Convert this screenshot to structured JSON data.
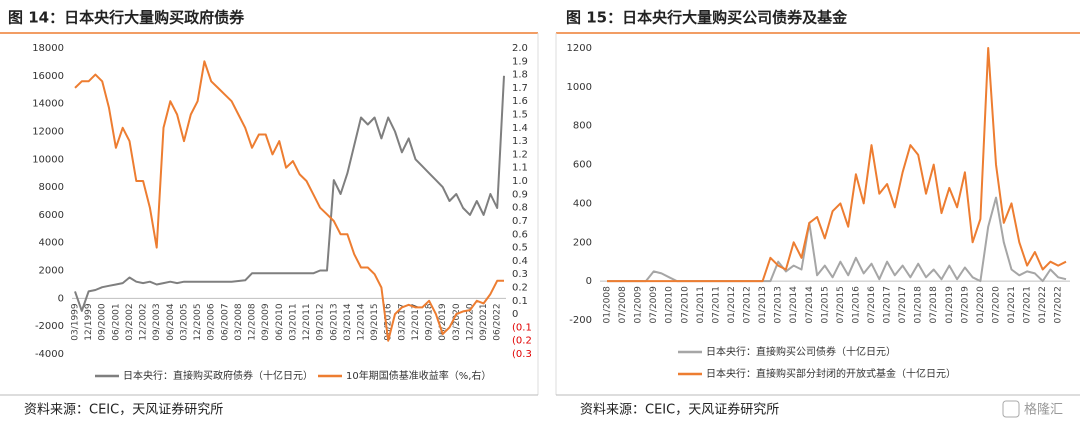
{
  "chart_data": [
    {
      "type": "line",
      "title": "图 14：日本央行大量购买政府债券",
      "source": "资料来源：CEIC，天风证券研究所",
      "categories": [
        "03/1999",
        null,
        "12/1999",
        null,
        "09/2000",
        null,
        "06/2001",
        null,
        "03/2002",
        null,
        "12/2002",
        null,
        "09/2003",
        null,
        "06/2004",
        null,
        "03/2005",
        null,
        "12/2005",
        null,
        "09/2006",
        null,
        "06/2007",
        null,
        "03/2008",
        null,
        "12/2008",
        null,
        "09/2009",
        null,
        "06/2010",
        null,
        "03/2011",
        null,
        "12/2011",
        null,
        "09/2012",
        null,
        "06/2013",
        null,
        "03/2014",
        null,
        "12/2014",
        null,
        "09/2015",
        null,
        "06/2016",
        null,
        "03/2017",
        null,
        "12/2017",
        null,
        "09/2018",
        null,
        "06/2019",
        null,
        "03/2020",
        null,
        "12/2020",
        null,
        "09/2021",
        null,
        "06/2022",
        null
      ],
      "series": [
        {
          "name": "日本央行：直接购买政府债券（十亿日元）",
          "color": "#7f7f7f",
          "axis": "y",
          "values": [
            500,
            -900,
            500,
            600,
            800,
            900,
            1000,
            1100,
            1500,
            1200,
            1100,
            1200,
            1000,
            1100,
            1200,
            1100,
            1200,
            1200,
            1200,
            1200,
            1200,
            1200,
            1200,
            1200,
            1250,
            1300,
            1800,
            1800,
            1800,
            1800,
            1800,
            1800,
            1800,
            1800,
            1800,
            1800,
            2000,
            2000,
            8500,
            7500,
            9000,
            11000,
            13000,
            12500,
            13000,
            11500,
            13000,
            12000,
            10500,
            11500,
            10000,
            9500,
            9000,
            8500,
            8000,
            7000,
            7500,
            6500,
            6000,
            7000,
            6000,
            7500,
            6500,
            16000
          ]
        },
        {
          "name": "10年期国债基准收益率（%,右）",
          "color": "#ed7d31",
          "axis": "y2",
          "values": [
            1.7,
            1.75,
            1.75,
            1.8,
            1.75,
            1.55,
            1.25,
            1.4,
            1.3,
            1.0,
            1.0,
            0.8,
            0.5,
            1.4,
            1.6,
            1.5,
            1.3,
            1.5,
            1.6,
            1.9,
            1.75,
            1.7,
            1.65,
            1.6,
            1.5,
            1.4,
            1.25,
            1.35,
            1.35,
            1.2,
            1.3,
            1.1,
            1.15,
            1.05,
            1.0,
            0.9,
            0.8,
            0.75,
            0.7,
            0.6,
            0.6,
            0.45,
            0.35,
            0.35,
            0.3,
            0.2,
            -0.2,
            0.0,
            0.05,
            0.07,
            0.05,
            0.05,
            0.1,
            0.0,
            -0.15,
            -0.1,
            0.0,
            0.02,
            0.03,
            0.1,
            0.08,
            0.15,
            0.25,
            0.25
          ]
        }
      ],
      "ylim": [
        -4000,
        18000
      ],
      "yticks": [
        18000,
        16000,
        14000,
        12000,
        10000,
        8000,
        6000,
        4000,
        2000,
        0,
        -2000,
        -4000
      ],
      "y2lim": [
        -0.3,
        2.0
      ],
      "y2ticks": [
        {
          "value": 2.0,
          "label": "2.0"
        },
        1.9,
        1.8,
        1.7,
        1.6,
        1.5,
        1.4,
        1.3,
        1.2,
        1.1,
        {
          "value": 1.0,
          "label": "1.0"
        },
        0.9,
        0.8,
        0.7,
        0.6,
        0.5,
        0.4,
        0.3,
        0.2,
        0.1,
        0,
        {
          "value": -0.1,
          "label": "(0.1"
        },
        {
          "value": -0.2,
          "label": "(0.2"
        },
        {
          "value": -0.3,
          "label": "(0.3"
        }
      ]
    },
    {
      "type": "line",
      "title": "图 15：日本央行大量购买公司债券及基金",
      "source": "资料来源：CEIC，天风证券研究所",
      "categories": [
        "01/2008",
        null,
        "07/2008",
        null,
        "01/2009",
        null,
        "07/2009",
        null,
        "01/2010",
        null,
        "07/2010",
        null,
        "01/2011",
        null,
        "07/2011",
        null,
        "01/2012",
        null,
        "07/2012",
        null,
        "01/2013",
        null,
        "07/2013",
        null,
        "01/2014",
        null,
        "07/2014",
        null,
        "01/2015",
        null,
        "07/2015",
        null,
        "01/2016",
        null,
        "07/2016",
        null,
        "01/2017",
        null,
        "07/2017",
        null,
        "01/2018",
        null,
        "07/2018",
        null,
        "01/2019",
        null,
        "07/2019",
        null,
        "01/2020",
        null,
        "07/2020",
        null,
        "01/2021",
        null,
        "07/2021",
        null,
        "01/2022",
        null,
        "07/2022",
        null
      ],
      "series": [
        {
          "name": "日本央行：直接购买公司债券（十亿日元）",
          "color": "#a6a6a6",
          "axis": "y",
          "values": [
            0,
            0,
            0,
            0,
            0,
            0,
            50,
            40,
            20,
            0,
            0,
            0,
            0,
            0,
            0,
            0,
            0,
            0,
            0,
            0,
            0,
            0,
            100,
            50,
            80,
            60,
            300,
            30,
            80,
            20,
            100,
            30,
            120,
            40,
            90,
            10,
            100,
            30,
            80,
            20,
            90,
            20,
            60,
            10,
            80,
            10,
            70,
            20,
            0,
            280,
            430,
            200,
            60,
            30,
            50,
            40,
            0,
            60,
            20,
            10
          ]
        },
        {
          "name": "日本央行：直接购买部分封闭的开放式基金（十亿日元）",
          "color": "#ed7d31",
          "axis": "y",
          "values": [
            0,
            0,
            0,
            0,
            0,
            0,
            0,
            0,
            0,
            0,
            0,
            0,
            0,
            0,
            0,
            0,
            0,
            0,
            0,
            0,
            0,
            120,
            80,
            60,
            200,
            120,
            300,
            330,
            220,
            360,
            400,
            280,
            550,
            400,
            700,
            450,
            500,
            380,
            560,
            700,
            650,
            450,
            600,
            350,
            480,
            380,
            560,
            200,
            320,
            1200,
            600,
            300,
            400,
            200,
            80,
            150,
            60,
            100,
            80,
            100
          ]
        }
      ],
      "ylim": [
        -200,
        1200
      ],
      "yticks": [
        1200,
        1000,
        800,
        600,
        400,
        200,
        0,
        -200
      ]
    }
  ],
  "watermark": "格隆汇"
}
